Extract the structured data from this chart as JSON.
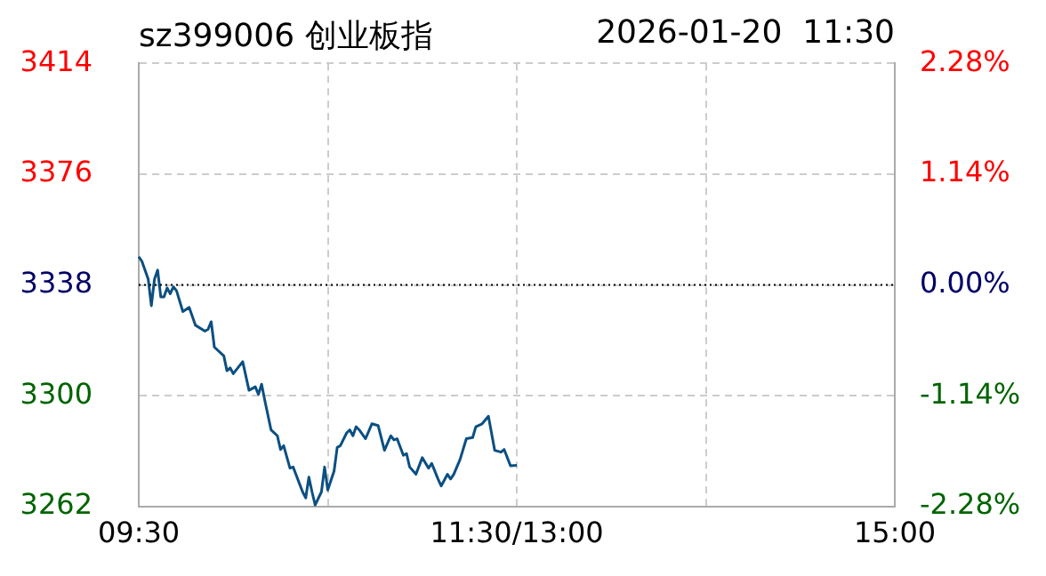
{
  "chart_data": {
    "type": "line",
    "title": "sz399006 创业板指",
    "subtitle": "2026-01-20  11:30",
    "categories": [
      "09:30",
      null,
      null,
      null,
      null,
      null,
      null,
      null,
      null,
      null,
      null,
      null,
      null,
      null,
      null,
      null,
      null,
      null,
      null,
      null,
      null,
      null,
      null,
      null,
      null,
      null,
      null,
      null,
      null,
      null,
      null,
      null,
      null,
      null,
      null,
      null,
      null,
      null,
      null,
      null,
      null,
      null,
      null,
      null,
      null,
      null,
      null,
      null,
      null,
      null,
      null,
      null,
      null,
      null,
      null,
      null,
      null,
      null,
      null,
      null,
      null,
      null,
      null,
      null,
      null,
      null,
      null,
      null,
      null,
      null,
      null,
      null,
      null,
      null,
      null,
      null,
      null,
      null,
      null,
      null,
      null,
      null,
      null,
      null,
      null,
      null,
      null,
      null,
      null,
      null,
      null,
      null,
      null,
      null,
      null,
      null,
      null,
      null,
      null,
      null,
      null,
      null,
      null,
      null,
      null,
      null,
      null,
      null,
      null,
      null,
      null,
      null,
      null,
      null,
      null,
      null,
      null,
      null,
      null,
      null,
      "11:30/13:00",
      null,
      null,
      null,
      null,
      null,
      null,
      null,
      null,
      null,
      null,
      null,
      null,
      null,
      null,
      null,
      null,
      null,
      null,
      null,
      null,
      null,
      null,
      null,
      null,
      null,
      null,
      null,
      null,
      null,
      null,
      null,
      null,
      null,
      null,
      null,
      null,
      null,
      null,
      null,
      null,
      null,
      null,
      null,
      null,
      null,
      null,
      null,
      null,
      null,
      null,
      null,
      null,
      null,
      null,
      null,
      null,
      null,
      null,
      null,
      null,
      null,
      null,
      null,
      null,
      null,
      null,
      null,
      null,
      null,
      null,
      null,
      null,
      null,
      null,
      null,
      null,
      null,
      null,
      null,
      null,
      null,
      null,
      null,
      null,
      null,
      null,
      null,
      null,
      null,
      null,
      null,
      null,
      null,
      null,
      null,
      null,
      null,
      null,
      null,
      null,
      null,
      null,
      null,
      null,
      null,
      null,
      null,
      null,
      null,
      null,
      null,
      null,
      null,
      null,
      null,
      null,
      null,
      null,
      null,
      "15:00"
    ],
    "series": [
      {
        "color": "#0b4f82",
        "values": [
          3347.7,
          3346.1,
          null,
          3340.0,
          3330.9,
          3340.0,
          3343.1,
          3333.9,
          3333.9,
          3337.0,
          3335.0,
          3337.4,
          3336.0,
          null,
          3328.9,
          null,
          3330.3,
          null,
          3324.2,
          null,
          null,
          3322.2,
          3322.8,
          3325.4,
          3316.7,
          null,
          null,
          3313.7,
          3308.6,
          3309.6,
          3307.6,
          null,
          null,
          3311.7,
          null,
          3301.9,
          null,
          3303.1,
          3300.5,
          3304.0,
          3298.5,
          null,
          3288.3,
          null,
          3286.3,
          3281.6,
          3282.9,
          null,
          3275.2,
          3275.6,
          null,
          null,
          3267.1,
          3265.0,
          3272.1,
          3267.1,
          3262.6,
          null,
          3267.1,
          3275.6,
          3267.7,
          null,
          3274.2,
          3282.3,
          3282.9,
          null,
          3287.3,
          3288.3,
          3286.3,
          3289.4,
          3288.3,
          null,
          3285.3,
          null,
          3290.4,
          null,
          3289.8,
          null,
          3281.3,
          null,
          3286.3,
          3284.9,
          3285.3,
          null,
          3279.6,
          3280.2,
          3275.6,
          null,
          3273.1,
          null,
          3278.8,
          null,
          3275.2,
          3276.8,
          null,
          3271.5,
          3269.1,
          null,
          3273.1,
          3271.5,
          3273.1,
          null,
          3278.2,
          null,
          3285.3,
          null,
          3285.7,
          3289.4,
          null,
          3290.4,
          null,
          3293.0,
          null,
          3281.3,
          null,
          3280.7,
          3281.6,
          null,
          3276.0,
          null,
          3276.2,
          null,
          null,
          null,
          null,
          null,
          null,
          null,
          null,
          null,
          null,
          null,
          null,
          null,
          null,
          null,
          null,
          null,
          null,
          null,
          null,
          null,
          null,
          null,
          null,
          null,
          null,
          null,
          null,
          null,
          null,
          null,
          null,
          null,
          null,
          null,
          null,
          null,
          null,
          null,
          null,
          null,
          null,
          null,
          null,
          null,
          null,
          null,
          null,
          null,
          null,
          null,
          null,
          null,
          null,
          null,
          null,
          null,
          null,
          null,
          null,
          null,
          null,
          null,
          null,
          null,
          null,
          null,
          null,
          null,
          null,
          null,
          null,
          null,
          null,
          null,
          null,
          null,
          null,
          null,
          null,
          null,
          null,
          null,
          null,
          null,
          null,
          null,
          null,
          null,
          null,
          null,
          null,
          null,
          null,
          null,
          null,
          null,
          null,
          null,
          null,
          null,
          null,
          null,
          null,
          null,
          null,
          null,
          null,
          null,
          null,
          null,
          null,
          null,
          null,
          null,
          null,
          null,
          null,
          null,
          null
        ]
      }
    ],
    "ylim": [
      3262,
      3414
    ],
    "yticks": [
      3262,
      3300,
      3338,
      3376,
      3414
    ],
    "y2lim": [
      -2.28,
      2.28
    ],
    "y2ticks": [
      {
        "value": -2.28,
        "label": "-2.28%"
      },
      {
        "value": -1.14,
        "label": "-1.14%"
      },
      {
        "value": 0,
        "label": "0.00%"
      },
      {
        "value": 1.14,
        "label": "1.14%"
      },
      {
        "value": 2.28,
        "label": "2.28%"
      }
    ],
    "ref_lines": [
      {
        "axis": "y",
        "value": 3338,
        "color": "#000000",
        "line_style": "dotted"
      }
    ],
    "grid": true,
    "legend": false,
    "marker": "none",
    "line_style": "solid"
  }
}
